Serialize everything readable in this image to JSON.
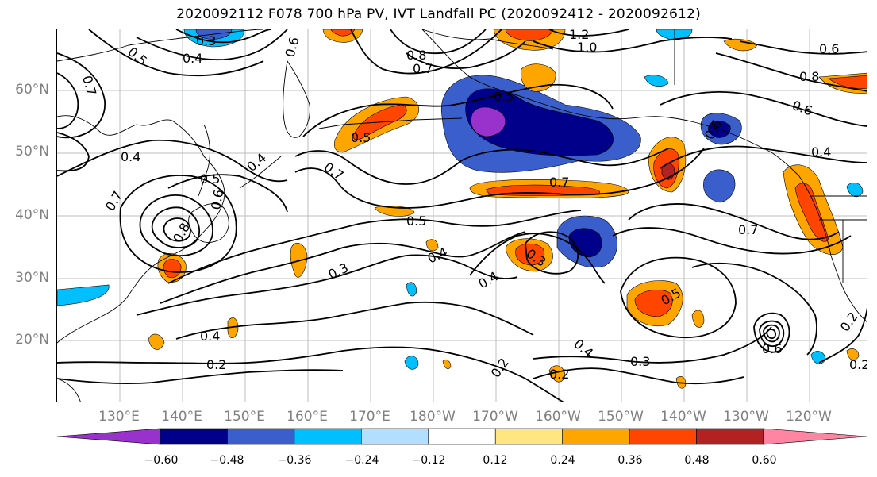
{
  "title": "2020092112 F078 700 hPa PV, IVT Landfall PC (2020092412 - 2020092612)",
  "axes": {
    "lat_labels": [
      "60°N",
      "50°N",
      "40°N",
      "30°N",
      "20°N"
    ],
    "lon_labels": [
      "130°E",
      "140°E",
      "150°E",
      "160°E",
      "170°E",
      "180°W",
      "170°W",
      "160°W",
      "150°W",
      "140°W",
      "130°W",
      "120°W"
    ]
  },
  "colorbar": {
    "tick_labels": [
      "−0.60",
      "−0.48",
      "−0.36",
      "−0.24",
      "−0.12",
      "0.12",
      "0.24",
      "0.36",
      "0.48",
      "0.60"
    ],
    "bin_colors": [
      "#9932cc",
      "#00008b",
      "#3a5fcd",
      "#00bfff",
      "#b2dfff",
      "#ffffff",
      "#ffe680",
      "#ffa500",
      "#ff4500",
      "#b22222",
      "#ff85a2"
    ]
  },
  "contour_labels": [
    "0.3",
    "0.5",
    "0.4",
    "0.7",
    "0.6",
    "0.8",
    "1.2",
    "1.0",
    "0.7",
    "0.6",
    "0.8",
    "0.6",
    "0.4",
    "0.5",
    "0.5",
    "0.7",
    "0.7",
    "0.4",
    "0.5",
    "0.6",
    "0.7",
    "0.8",
    "0.5",
    "0.7",
    "0.4",
    "0.3",
    "0.3",
    "0.4",
    "0.4",
    "0.2",
    "0.2",
    "0.2",
    "0.3",
    "0.5",
    "0.2",
    "0.2",
    "0.6",
    "0.4",
    "0.6",
    "0.4"
  ]
}
